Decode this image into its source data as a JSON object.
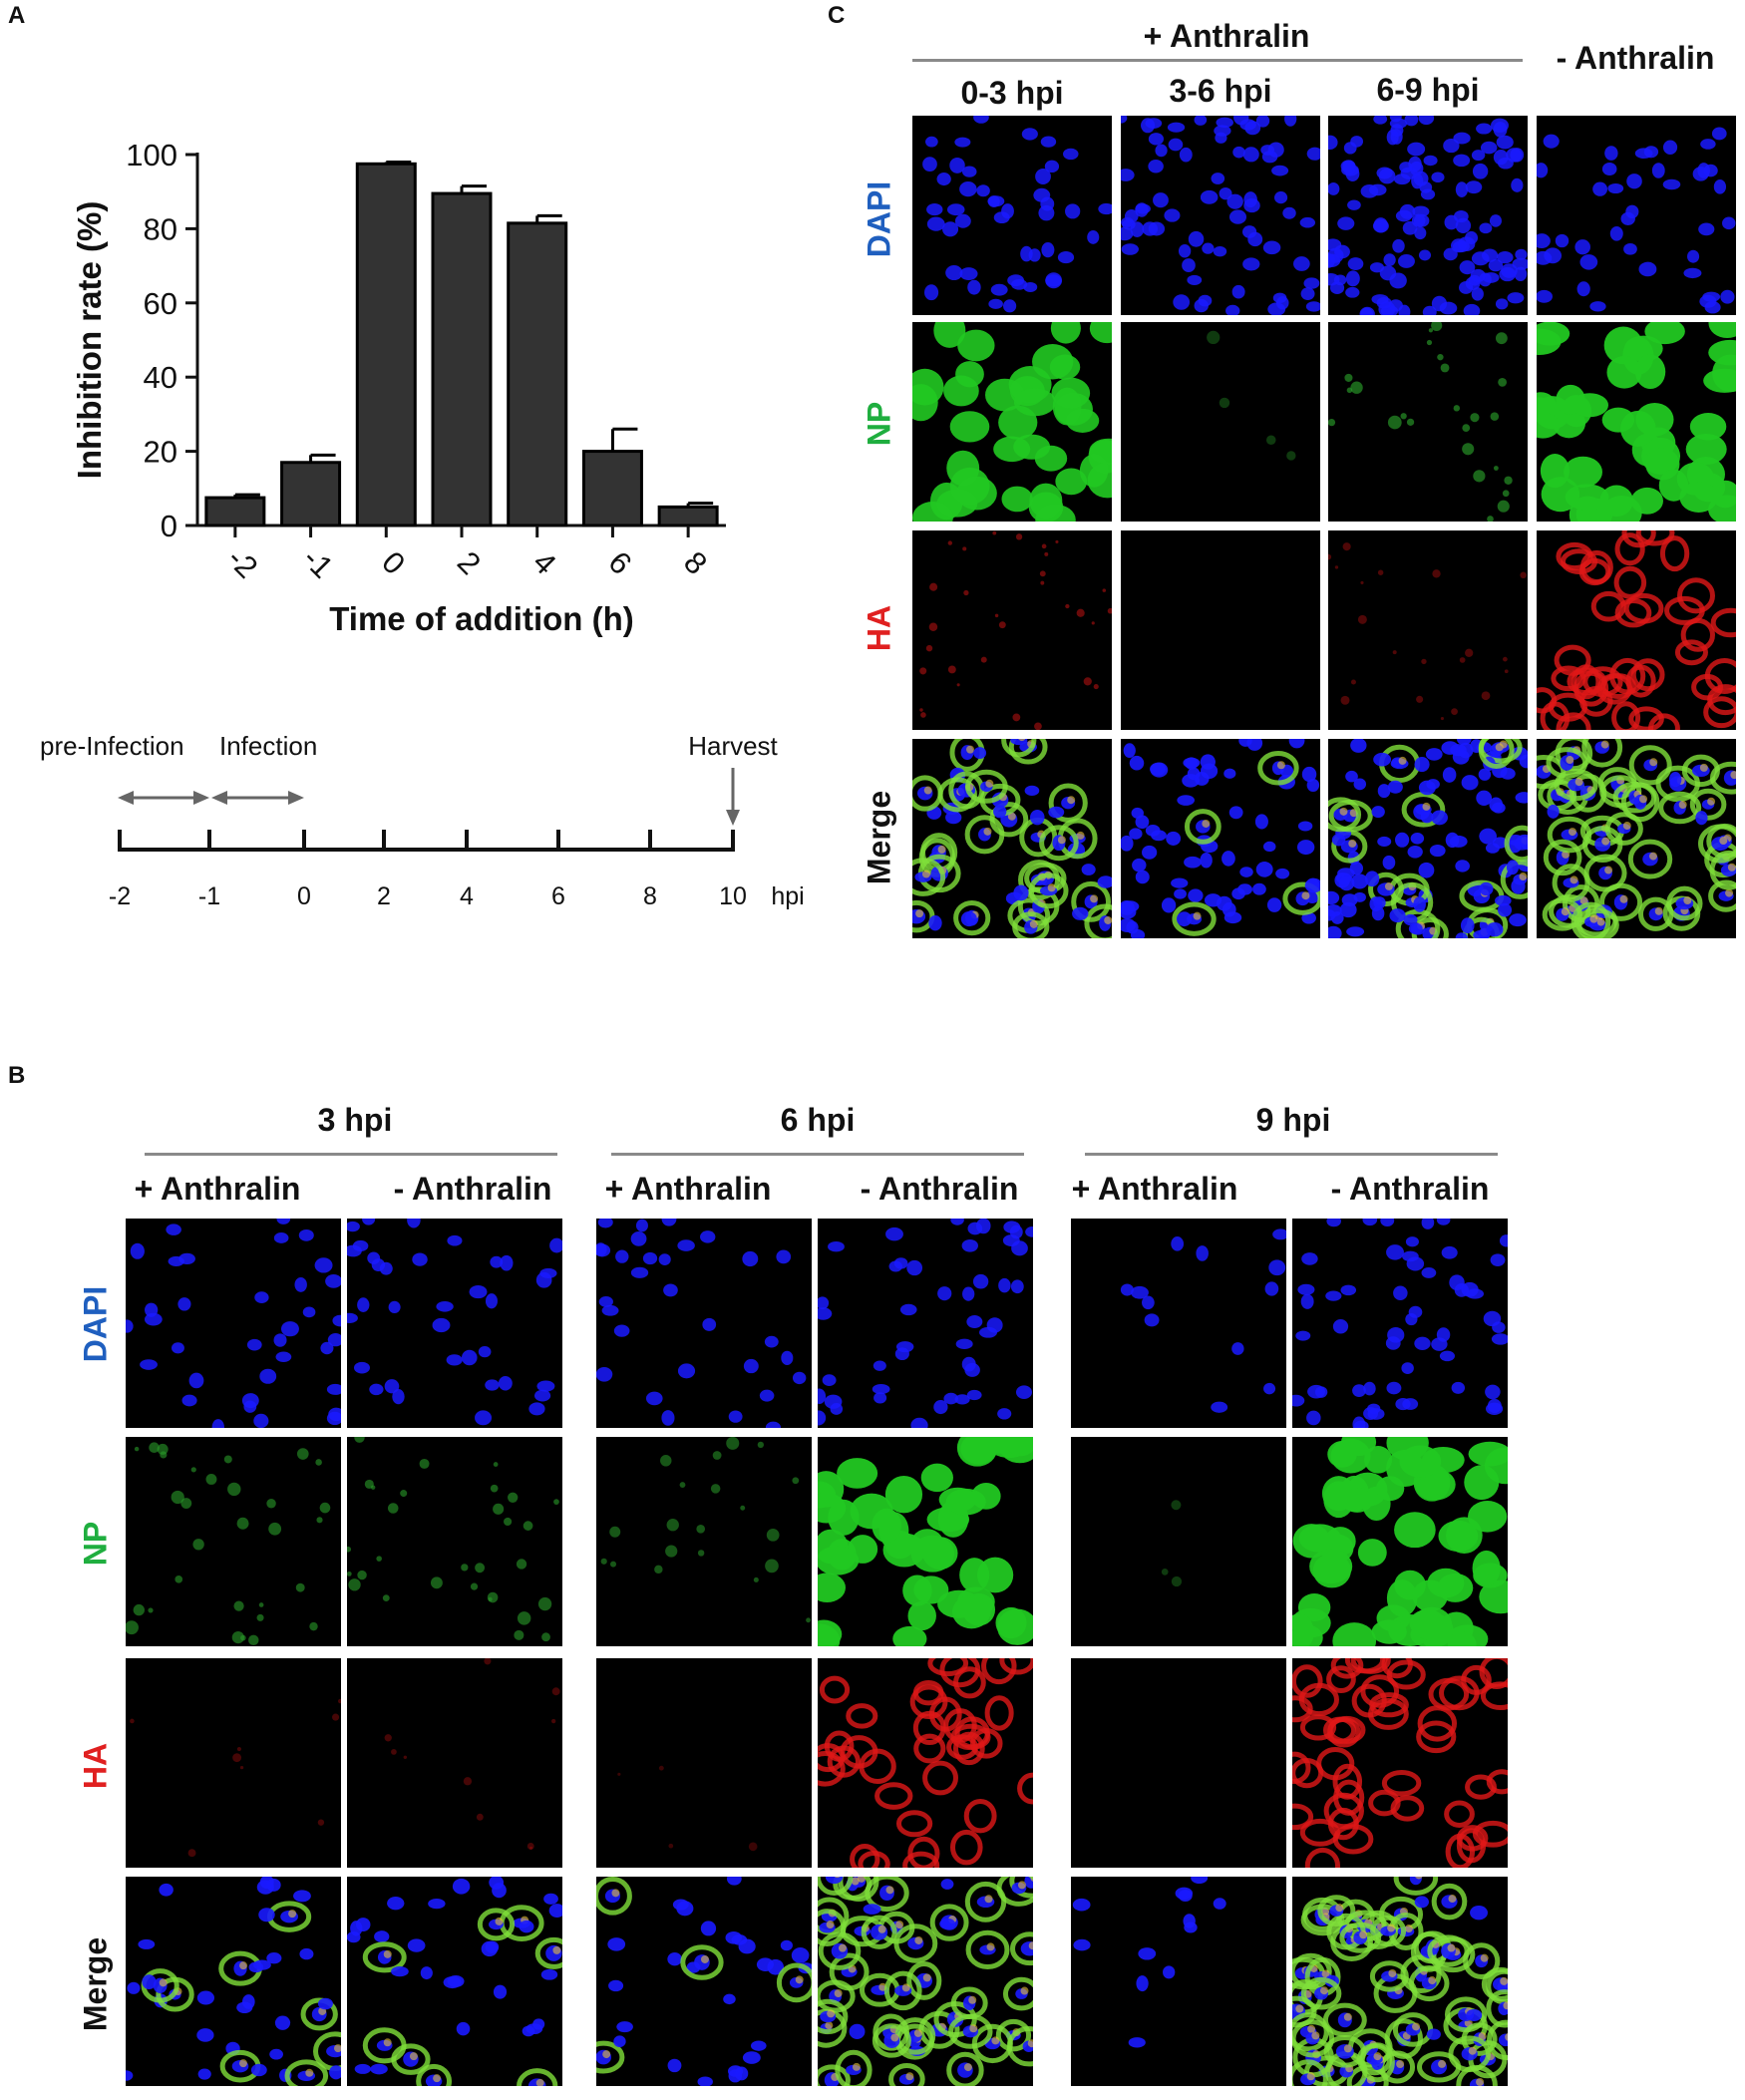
{
  "panel_letters": {
    "a": "A",
    "b": "B",
    "c": "C"
  },
  "chart_data": {
    "type": "bar",
    "categories": [
      "-2",
      "-1",
      "0",
      "2",
      "4",
      "6",
      "8"
    ],
    "values": [
      7.5,
      17,
      97.5,
      89.5,
      81.5,
      20,
      5
    ],
    "errors": [
      0.8,
      2,
      0.5,
      2,
      2,
      6,
      1
    ],
    "ylabel": "Inhibition rate (%)",
    "xlabel": "Time of addition (h)",
    "ylim": [
      0,
      100
    ],
    "yticks": [
      "0",
      "20",
      "40",
      "60",
      "80",
      "100"
    ],
    "bar_color": "#333333",
    "grid": false
  },
  "timeline": {
    "labels": [
      "pre-Infection",
      "Infection",
      "Harvest"
    ],
    "ticks": [
      "-2",
      "-1",
      "0",
      "2",
      "4",
      "6",
      "8",
      "10"
    ],
    "unit": "hpi"
  },
  "panel_c": {
    "group_header": "+ Anthralin",
    "columns": [
      "0-3 hpi",
      "3-6 hpi",
      "6-9 hpi",
      "- Anthralin"
    ],
    "rows": [
      "DAPI",
      "NP",
      "HA",
      "Merge"
    ]
  },
  "panel_b": {
    "groups": [
      {
        "title": "3 hpi",
        "cols": [
          "+ Anthralin",
          "- Anthralin"
        ]
      },
      {
        "title": "6 hpi",
        "cols": [
          "+ Anthralin",
          "- Anthralin"
        ]
      },
      {
        "title": "9 hpi",
        "cols": [
          "+ Anthralin",
          "- Anthralin"
        ]
      }
    ],
    "rows": [
      "DAPI",
      "NP",
      "HA",
      "Merge"
    ]
  },
  "colors": {
    "dapi": "#1f5fbf",
    "np": "#1fae3f",
    "ha": "#e02020",
    "merge": "#111111"
  }
}
